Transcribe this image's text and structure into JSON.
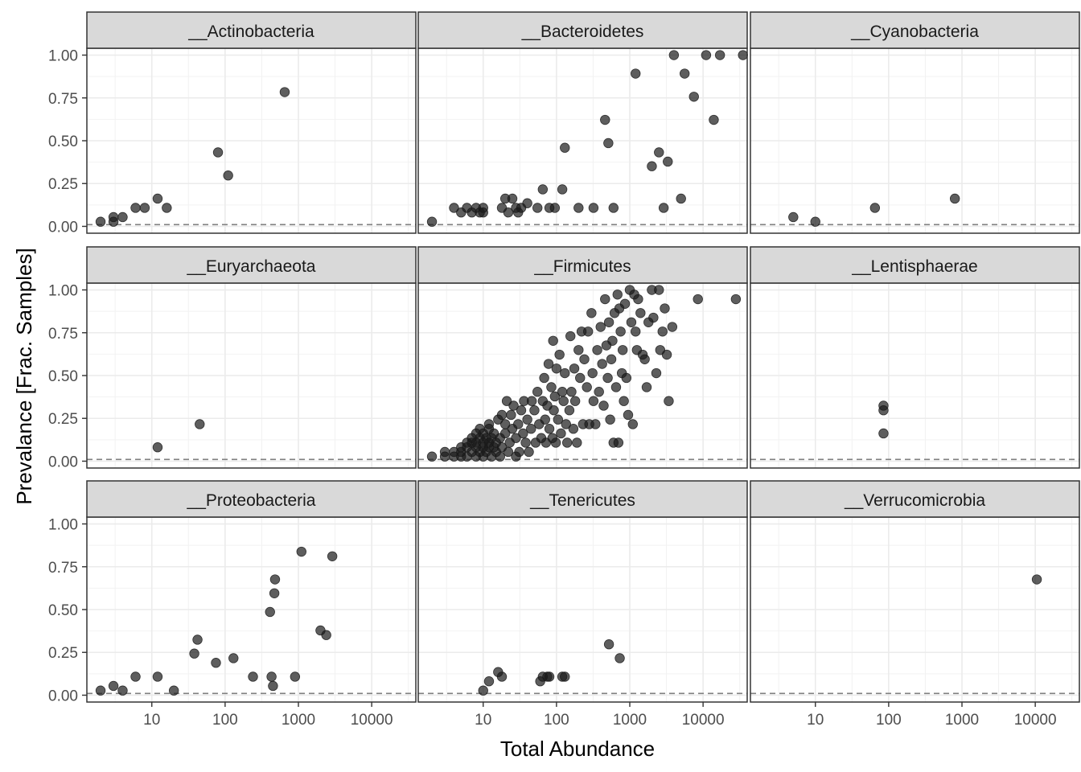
{
  "chart_data": {
    "type": "scatter",
    "layout": "faceted 3x3 grid",
    "xlabel": "Total Abundance",
    "ylabel": "Prevalance [Frac. Samples]",
    "x_scale": "log10",
    "xlim": [
      1.3,
      40000
    ],
    "ylim": [
      -0.04,
      1.04
    ],
    "x_ticks": [
      10,
      100,
      1000,
      10000
    ],
    "x_tick_labels": [
      "10",
      "100",
      "1000",
      "10000"
    ],
    "y_ticks": [
      0,
      0.25,
      0.5,
      0.75,
      1.0
    ],
    "y_tick_labels": [
      "0.00",
      "0.25",
      "0.50",
      "0.75",
      "1.00"
    ],
    "reference_line": {
      "y": 0.01,
      "style": "dashed",
      "color": "#808080"
    },
    "point_color": "#1a1a1a",
    "point_opacity": 0.7,
    "grid": true,
    "legend": "none",
    "panels": [
      {
        "title": "__Actinobacteria",
        "points": [
          [
            2,
            0.027
          ],
          [
            3,
            0.027
          ],
          [
            3,
            0.054
          ],
          [
            4,
            0.054
          ],
          [
            6,
            0.108
          ],
          [
            8,
            0.108
          ],
          [
            12,
            0.162
          ],
          [
            16,
            0.108
          ],
          [
            80,
            0.432
          ],
          [
            110,
            0.297
          ],
          [
            650,
            0.784
          ]
        ]
      },
      {
        "title": "__Bacteroidetes",
        "points": [
          [
            2,
            0.027
          ],
          [
            4,
            0.108
          ],
          [
            5,
            0.081
          ],
          [
            6,
            0.108
          ],
          [
            7,
            0.081
          ],
          [
            8,
            0.108
          ],
          [
            9,
            0.081
          ],
          [
            10,
            0.081
          ],
          [
            10,
            0.108
          ],
          [
            18,
            0.108
          ],
          [
            20,
            0.162
          ],
          [
            22,
            0.081
          ],
          [
            25,
            0.162
          ],
          [
            28,
            0.108
          ],
          [
            30,
            0.081
          ],
          [
            33,
            0.108
          ],
          [
            40,
            0.135
          ],
          [
            55,
            0.108
          ],
          [
            65,
            0.216
          ],
          [
            80,
            0.108
          ],
          [
            95,
            0.108
          ],
          [
            120,
            0.216
          ],
          [
            130,
            0.459
          ],
          [
            200,
            0.108
          ],
          [
            320,
            0.108
          ],
          [
            460,
            0.622
          ],
          [
            510,
            0.486
          ],
          [
            600,
            0.108
          ],
          [
            1200,
            0.892
          ],
          [
            2000,
            0.351
          ],
          [
            2500,
            0.432
          ],
          [
            2900,
            0.108
          ],
          [
            3300,
            0.378
          ],
          [
            4000,
            1.0
          ],
          [
            5000,
            0.162
          ],
          [
            5600,
            0.892
          ],
          [
            7500,
            0.757
          ],
          [
            11000,
            1.0
          ],
          [
            14000,
            0.622
          ],
          [
            17000,
            1.0
          ],
          [
            35000,
            1.0
          ]
        ]
      },
      {
        "title": "__Cyanobacteria",
        "points": [
          [
            5,
            0.054
          ],
          [
            10,
            0.027
          ],
          [
            65,
            0.108
          ],
          [
            800,
            0.162
          ]
        ]
      },
      {
        "title": "__Euryarchaeota",
        "points": [
          [
            12,
            0.081
          ],
          [
            45,
            0.216
          ]
        ]
      },
      {
        "title": "__Firmicutes",
        "points": [
          [
            2,
            0.027
          ],
          [
            3,
            0.027
          ],
          [
            3,
            0.054
          ],
          [
            4,
            0.027
          ],
          [
            4,
            0.054
          ],
          [
            5,
            0.027
          ],
          [
            5,
            0.054
          ],
          [
            5,
            0.081
          ],
          [
            6,
            0.027
          ],
          [
            6,
            0.081
          ],
          [
            6,
            0.108
          ],
          [
            7,
            0.054
          ],
          [
            7,
            0.108
          ],
          [
            7,
            0.135
          ],
          [
            8,
            0.027
          ],
          [
            8,
            0.081
          ],
          [
            8,
            0.108
          ],
          [
            8,
            0.162
          ],
          [
            9,
            0.054
          ],
          [
            9,
            0.135
          ],
          [
            9,
            0.189
          ],
          [
            10,
            0.027
          ],
          [
            10,
            0.081
          ],
          [
            10,
            0.108
          ],
          [
            10,
            0.162
          ],
          [
            11,
            0.054
          ],
          [
            11,
            0.135
          ],
          [
            12,
            0.081
          ],
          [
            12,
            0.108
          ],
          [
            12,
            0.189
          ],
          [
            12,
            0.216
          ],
          [
            13,
            0.027
          ],
          [
            13,
            0.135
          ],
          [
            14,
            0.081
          ],
          [
            14,
            0.162
          ],
          [
            15,
            0.054
          ],
          [
            15,
            0.108
          ],
          [
            16,
            0.243
          ],
          [
            17,
            0.027
          ],
          [
            17,
            0.135
          ],
          [
            18,
            0.081
          ],
          [
            18,
            0.27
          ],
          [
            20,
            0.162
          ],
          [
            20,
            0.216
          ],
          [
            21,
            0.351
          ],
          [
            22,
            0.054
          ],
          [
            23,
            0.108
          ],
          [
            24,
            0.27
          ],
          [
            25,
            0.189
          ],
          [
            26,
            0.324
          ],
          [
            28,
            0.027
          ],
          [
            28,
            0.135
          ],
          [
            30,
            0.216
          ],
          [
            31,
            0.054
          ],
          [
            33,
            0.297
          ],
          [
            35,
            0.162
          ],
          [
            36,
            0.351
          ],
          [
            38,
            0.108
          ],
          [
            40,
            0.243
          ],
          [
            42,
            0.054
          ],
          [
            45,
            0.189
          ],
          [
            46,
            0.351
          ],
          [
            50,
            0.297
          ],
          [
            52,
            0.108
          ],
          [
            55,
            0.405
          ],
          [
            58,
            0.216
          ],
          [
            62,
            0.135
          ],
          [
            65,
            0.351
          ],
          [
            68,
            0.486
          ],
          [
            70,
            0.243
          ],
          [
            72,
            0.108
          ],
          [
            75,
            0.324
          ],
          [
            78,
            0.568
          ],
          [
            80,
            0.189
          ],
          [
            85,
            0.432
          ],
          [
            88,
            0.135
          ],
          [
            90,
            0.703
          ],
          [
            92,
            0.297
          ],
          [
            95,
            0.378
          ],
          [
            98,
            0.108
          ],
          [
            100,
            0.541
          ],
          [
            105,
            0.243
          ],
          [
            110,
            0.622
          ],
          [
            115,
            0.162
          ],
          [
            120,
            0.405
          ],
          [
            125,
            0.351
          ],
          [
            130,
            0.514
          ],
          [
            135,
            0.216
          ],
          [
            140,
            0.108
          ],
          [
            150,
            0.297
          ],
          [
            155,
            0.73
          ],
          [
            160,
            0.405
          ],
          [
            170,
            0.189
          ],
          [
            175,
            0.541
          ],
          [
            180,
            0.351
          ],
          [
            190,
            0.108
          ],
          [
            200,
            0.649
          ],
          [
            210,
            0.486
          ],
          [
            220,
            0.757
          ],
          [
            230,
            0.216
          ],
          [
            240,
            0.595
          ],
          [
            260,
            0.432
          ],
          [
            270,
            0.757
          ],
          [
            280,
            0.216
          ],
          [
            300,
            0.865
          ],
          [
            310,
            0.514
          ],
          [
            320,
            0.351
          ],
          [
            340,
            0.216
          ],
          [
            360,
            0.649
          ],
          [
            380,
            0.405
          ],
          [
            400,
            0.784
          ],
          [
            420,
            0.568
          ],
          [
            440,
            0.324
          ],
          [
            460,
            0.946
          ],
          [
            480,
            0.676
          ],
          [
            500,
            0.486
          ],
          [
            520,
            0.811
          ],
          [
            540,
            0.243
          ],
          [
            560,
            0.595
          ],
          [
            580,
            0.703
          ],
          [
            600,
            0.108
          ],
          [
            620,
            0.865
          ],
          [
            650,
            0.432
          ],
          [
            680,
            0.973
          ],
          [
            700,
            0.108
          ],
          [
            720,
            0.892
          ],
          [
            750,
            0.757
          ],
          [
            780,
            0.514
          ],
          [
            800,
            0.649
          ],
          [
            830,
            0.351
          ],
          [
            860,
            0.919
          ],
          [
            900,
            0.486
          ],
          [
            950,
            0.27
          ],
          [
            1000,
            1.0
          ],
          [
            1050,
            0.811
          ],
          [
            1100,
            0.216
          ],
          [
            1150,
            0.973
          ],
          [
            1200,
            0.757
          ],
          [
            1250,
            0.649
          ],
          [
            1300,
            0.946
          ],
          [
            1400,
            0.865
          ],
          [
            1500,
            0.622
          ],
          [
            1600,
            0.595
          ],
          [
            1700,
            0.432
          ],
          [
            1800,
            0.811
          ],
          [
            2000,
            1.0
          ],
          [
            2100,
            0.838
          ],
          [
            2300,
            0.514
          ],
          [
            2500,
            1.0
          ],
          [
            2600,
            0.649
          ],
          [
            2800,
            0.757
          ],
          [
            3000,
            0.892
          ],
          [
            3200,
            0.622
          ],
          [
            3400,
            0.351
          ],
          [
            3800,
            0.784
          ],
          [
            8500,
            0.946
          ],
          [
            28000,
            0.946
          ]
        ]
      },
      {
        "title": "__Lentisphaerae",
        "points": [
          [
            85,
            0.324
          ],
          [
            85,
            0.297
          ],
          [
            85,
            0.162
          ]
        ]
      },
      {
        "title": "__Proteobacteria",
        "points": [
          [
            2,
            0.027
          ],
          [
            3,
            0.054
          ],
          [
            4,
            0.027
          ],
          [
            6,
            0.108
          ],
          [
            12,
            0.108
          ],
          [
            20,
            0.027
          ],
          [
            38,
            0.243
          ],
          [
            42,
            0.324
          ],
          [
            75,
            0.189
          ],
          [
            130,
            0.216
          ],
          [
            240,
            0.108
          ],
          [
            410,
            0.486
          ],
          [
            430,
            0.108
          ],
          [
            450,
            0.054
          ],
          [
            470,
            0.595
          ],
          [
            480,
            0.676
          ],
          [
            900,
            0.108
          ],
          [
            1100,
            0.838
          ],
          [
            2000,
            0.378
          ],
          [
            2400,
            0.351
          ],
          [
            2900,
            0.811
          ]
        ]
      },
      {
        "title": "__Tenericutes",
        "points": [
          [
            10,
            0.027
          ],
          [
            12,
            0.081
          ],
          [
            16,
            0.135
          ],
          [
            18,
            0.108
          ],
          [
            60,
            0.081
          ],
          [
            65,
            0.108
          ],
          [
            75,
            0.108
          ],
          [
            80,
            0.108
          ],
          [
            120,
            0.108
          ],
          [
            130,
            0.108
          ],
          [
            520,
            0.297
          ],
          [
            730,
            0.216
          ]
        ]
      },
      {
        "title": "__Verrucomicrobia",
        "points": [
          [
            10500,
            0.676
          ]
        ]
      }
    ]
  }
}
